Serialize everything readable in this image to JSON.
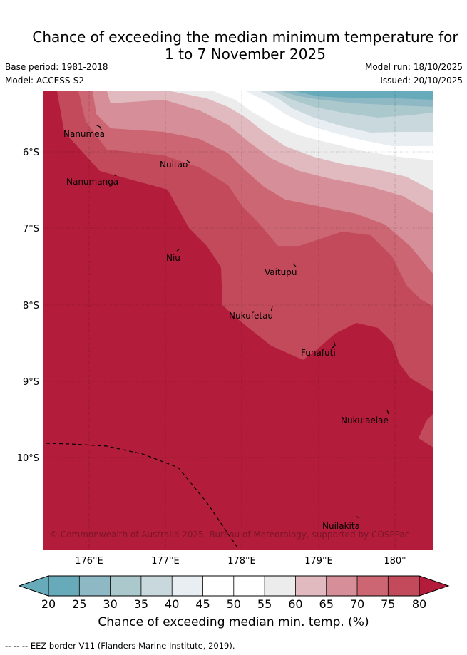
{
  "title": {
    "line1": "Chance of exceeding the median minimum temperature for",
    "line2": "1 to 7 November 2025"
  },
  "meta": {
    "base_period": "Base period: 1981-2018",
    "model": "Model: ACCESS-S2",
    "model_run": "Model run: 18/10/2025",
    "issued": "Issued: 20/10/2025"
  },
  "axes": {
    "lon_labels": [
      "176°E",
      "177°E",
      "178°E",
      "179°E",
      "180°"
    ],
    "lat_labels": [
      "6°S",
      "7°S",
      "8°S",
      "9°S",
      "10°S"
    ]
  },
  "places": [
    "Nanumea",
    "Nuitao",
    "Nanumanga",
    "Niu",
    "Vaitupu",
    "Nukufetau",
    "Funafuti",
    "Nukulaelae",
    "Nuilakita"
  ],
  "copyright": "© Commonwealth of Australia 2025, Bureau of Meteorology, supported by COSPPac",
  "colorbar": {
    "ticks": [
      "20",
      "25",
      "30",
      "35",
      "40",
      "45",
      "50",
      "55",
      "60",
      "65",
      "70",
      "75",
      "80"
    ],
    "colors": {
      "under": "#67aab9",
      "c20": "#67aab9",
      "c25": "#8db8c4",
      "c30": "#abc8cd",
      "c35": "#c9d8dd",
      "c40": "#e8eef1",
      "c45": "#ffffff",
      "c50": "#ffffff",
      "c55": "#ececec",
      "c60": "#e1bac0",
      "c65": "#d68e98",
      "c70": "#cb6672",
      "c75": "#c24a5a",
      "over": "#b31c3a"
    },
    "label": "Chance of exceeding median min. temp. (%)"
  },
  "footer": "-- -- -- EEZ border V11 (Flanders Marine Institute, 2019)."
}
